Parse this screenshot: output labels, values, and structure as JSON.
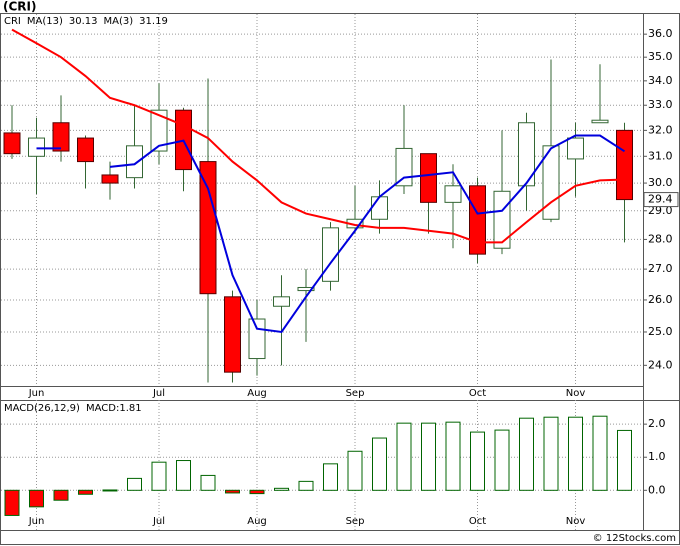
{
  "chart_data": [
    {
      "type": "candlestick",
      "title": "(CRI)",
      "symbol": "CRI",
      "categories": [
        null,
        "Jun",
        null,
        null,
        null,
        null,
        "Jul",
        null,
        null,
        null,
        "Aug",
        null,
        null,
        null,
        "Sep",
        null,
        null,
        null,
        null,
        "Oct",
        null,
        null,
        null,
        "Nov",
        null,
        null
      ],
      "open": [
        31.9,
        31.0,
        32.3,
        31.7,
        30.3,
        30.2,
        31.2,
        32.8,
        30.8,
        26.1,
        24.2,
        25.8,
        26.3,
        26.6,
        28.4,
        28.7,
        29.9,
        31.1,
        29.3,
        29.9,
        27.7,
        29.9,
        28.7,
        30.9,
        32.3,
        32.0
      ],
      "high": [
        33.0,
        32.5,
        33.4,
        31.8,
        30.8,
        33.0,
        33.9,
        32.9,
        34.1,
        26.3,
        26.0,
        26.8,
        27.0,
        28.6,
        29.9,
        30.1,
        33.0,
        31.1,
        30.7,
        30.2,
        32.0,
        32.7,
        34.9,
        32.3,
        34.7,
        32.3
      ],
      "low": [
        30.9,
        29.6,
        30.8,
        29.8,
        29.4,
        29.8,
        30.7,
        29.7,
        23.5,
        23.5,
        23.7,
        24.0,
        24.7,
        26.3,
        28.2,
        28.2,
        29.6,
        28.2,
        27.7,
        27.2,
        27.5,
        29.0,
        28.6,
        29.5,
        32.3,
        27.9
      ],
      "close": [
        31.1,
        31.7,
        31.2,
        30.8,
        30.0,
        31.4,
        32.8,
        30.5,
        26.2,
        23.8,
        25.4,
        26.1,
        26.4,
        28.4,
        28.7,
        29.5,
        31.3,
        29.3,
        29.9,
        27.5,
        29.7,
        32.3,
        31.4,
        31.7,
        32.4,
        29.4
      ],
      "up_color": "#ffffff",
      "down_color": "#ff0000",
      "wick_color": "#336633",
      "series": [
        {
          "name": "MA(13)",
          "legend_value": 30.13,
          "color": "#ff0000",
          "values": [
            36.2,
            35.6,
            35.0,
            34.2,
            33.3,
            33.0,
            32.6,
            32.2,
            31.7,
            30.8,
            30.1,
            29.3,
            28.9,
            28.7,
            28.5,
            28.4,
            28.4,
            28.3,
            28.2,
            27.9,
            27.9,
            28.6,
            29.3,
            29.9,
            30.1,
            30.13
          ]
        },
        {
          "name": "MA(3)",
          "legend_value": 31.19,
          "color": "#0000dd",
          "values": [
            null,
            31.3,
            31.3,
            null,
            30.6,
            30.7,
            31.4,
            31.6,
            29.8,
            26.8,
            25.1,
            25.0,
            26.1,
            27.2,
            28.3,
            29.5,
            30.2,
            30.3,
            30.4,
            28.9,
            29.0,
            30.0,
            31.3,
            31.8,
            31.8,
            31.19
          ]
        }
      ],
      "last_price": 29.4,
      "log_scale": true,
      "grid": true,
      "ylim": [
        23.4,
        36.9
      ],
      "yticks": [
        {
          "value": 24,
          "label": "24.0"
        },
        {
          "value": 25,
          "label": "25.0"
        },
        {
          "value": 26,
          "label": "26.0"
        },
        {
          "value": 27,
          "label": "27.0"
        },
        {
          "value": 28,
          "label": "28.0"
        },
        {
          "value": 29,
          "label": "29.0"
        },
        {
          "value": 30,
          "label": "30.0"
        },
        {
          "value": 31,
          "label": "31.0"
        },
        {
          "value": 32,
          "label": "32.0"
        },
        {
          "value": 33,
          "label": "33.0"
        },
        {
          "value": 34,
          "label": "34.0"
        },
        {
          "value": 35,
          "label": "35.0"
        },
        {
          "value": 36,
          "label": "36.0"
        }
      ]
    },
    {
      "type": "bar",
      "title": "MACD(26,12,9)",
      "legend": "MACD:1.81",
      "categories": [
        null,
        "Jun",
        null,
        null,
        null,
        null,
        "Jul",
        null,
        null,
        null,
        "Aug",
        null,
        null,
        null,
        "Sep",
        null,
        null,
        null,
        null,
        "Oct",
        null,
        null,
        null,
        "Nov",
        null,
        null
      ],
      "values": [
        -0.76,
        -0.5,
        -0.3,
        -0.12,
        0.01,
        0.36,
        0.85,
        0.9,
        0.45,
        -0.08,
        -0.1,
        0.06,
        0.27,
        0.8,
        1.18,
        1.58,
        2.03,
        2.03,
        2.06,
        1.76,
        1.82,
        2.18,
        2.21,
        2.21,
        2.24,
        1.81
      ],
      "color": "#ffffff",
      "edge_color": "#006400",
      "grid": true,
      "ylim": [
        -1.2,
        2.73
      ],
      "yticks": [
        {
          "value": 0,
          "label": "0.0"
        },
        {
          "value": 1,
          "label": "1.0"
        },
        {
          "value": 2,
          "label": "2.0"
        }
      ]
    }
  ],
  "footer": "© 12Stocks.com"
}
